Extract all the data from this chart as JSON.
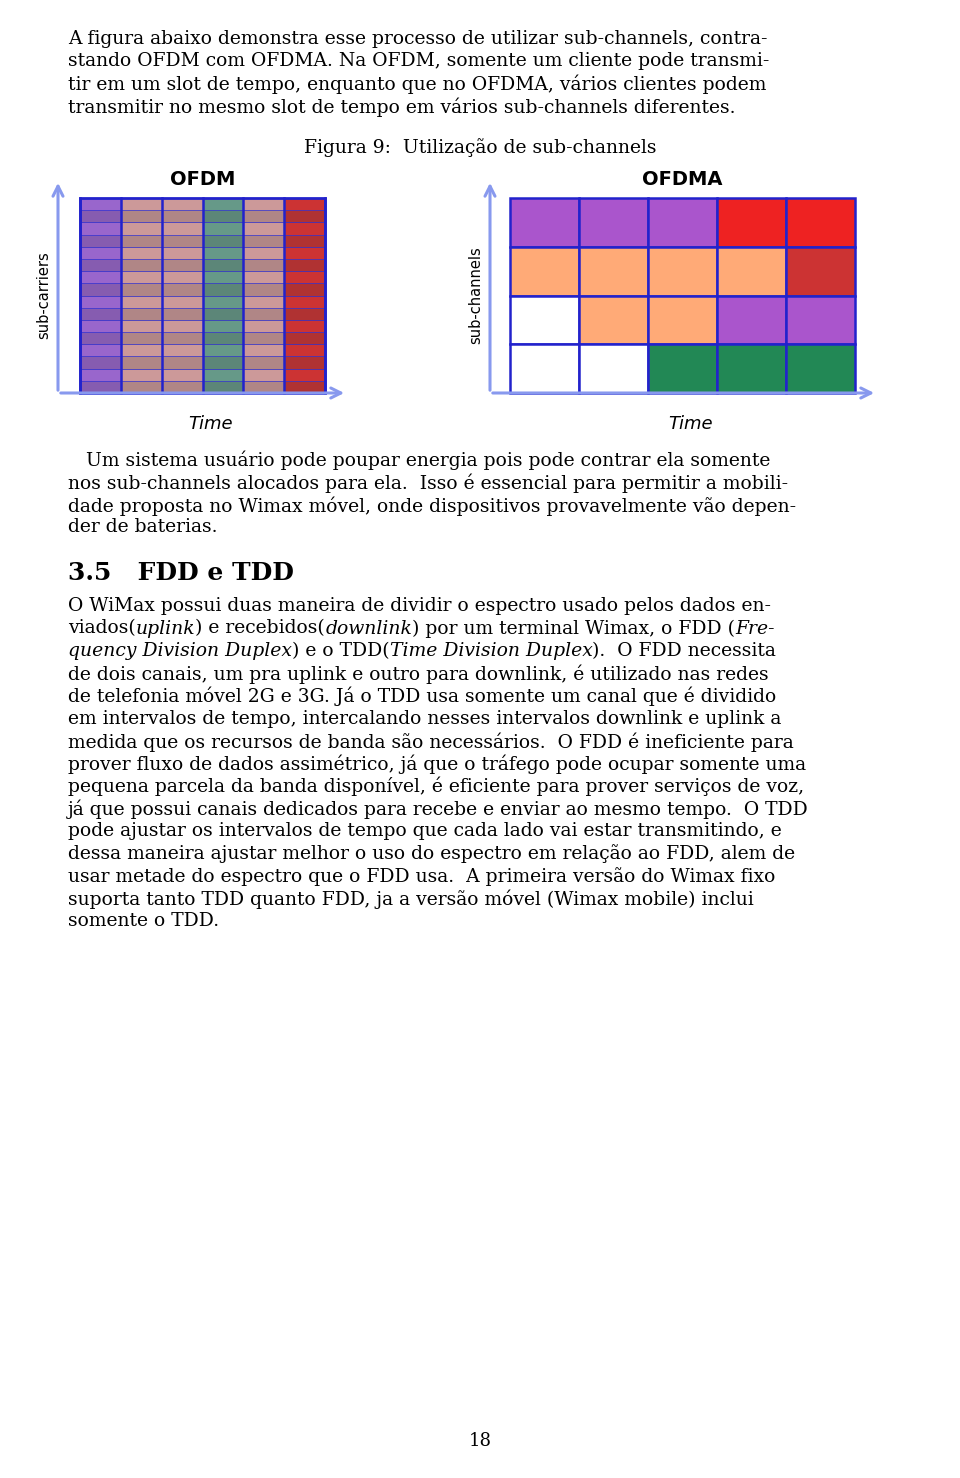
{
  "page_number": "18",
  "background_color": "#ffffff",
  "fig_caption": "Figura 9:  Utilização de sub-channels",
  "ofdm_title": "OFDM",
  "ofdma_title": "OFDMA",
  "ofdm_ylabel": "sub-carriers",
  "ofdma_ylabel": "sub-channels",
  "time_label": "Time",
  "border_color": "#2222CC",
  "arrow_color": "#8899EE",
  "ofdm_col_colors": [
    "#9966CC",
    "#CC9999",
    "#CC9999",
    "#669988",
    "#CC9999",
    "#CC3333"
  ],
  "ofdma_grid": [
    [
      "#AA55CC",
      "#AA55CC",
      "#AA55CC",
      "#EE2222",
      "#EE2222"
    ],
    [
      "#FFAA77",
      "#FFAA77",
      "#FFAA77",
      "#FFAA77",
      "#CC3333"
    ],
    [
      "#ffffff",
      "#FFAA77",
      "#FFAA77",
      "#AA55CC",
      "#AA55CC"
    ],
    [
      "#ffffff",
      "#ffffff",
      "#228855",
      "#228855",
      "#228855"
    ]
  ],
  "para1_lines": [
    "A figura abaixo demonstra esse processo de utilizar sub-channels, contra-",
    "stando OFDM com OFDMA. Na OFDM, somente um cliente pode transmi-",
    "tir em um slot de tempo, enquanto que no OFDMA, vários clientes podem",
    "transmitir no mesmo slot de tempo em vários sub-channels diferentes."
  ],
  "para2_lines": [
    "   Um sistema usuário pode poupar energia pois pode contrar ela somente",
    "nos sub-channels alocados para ela.  Isso é essencial para permitir a mobili-",
    "dade proposta no Wimax móvel, onde dispositivos provavelmente vão depen-",
    "der de baterias."
  ],
  "section_35": "3.5   FDD e TDD",
  "para3_lines": [
    [
      "O WiMax possui duas maneira de dividir o espectro usado pelos dados en-",
      "normal"
    ],
    [
      "viados(",
      "normal"
    ],
    [
      "uplink",
      "italic"
    ],
    [
      ") e recebidos(",
      "normal"
    ],
    [
      "downlink",
      "italic"
    ],
    [
      ") por um terminal Wimax, o FDD (",
      "normal"
    ],
    [
      "Fre-",
      "italic"
    ],
    [
      "quency Division Duplex",
      "italic"
    ],
    [
      ") e o TDD(",
      "normal"
    ],
    [
      "Time Division Duplex",
      "italic"
    ],
    [
      ").  O FDD necessita",
      "normal"
    ],
    [
      "de dois canais, um pra uplink e outro para downlink, é utilizado nas redes",
      "normal"
    ],
    [
      "de telefonia móvel 2G e 3G. Já o TDD usa somente um canal que é dividido",
      "normal"
    ],
    [
      "em intervalos de tempo, intercalando nesses intervalos downlink e uplink a",
      "normal"
    ],
    [
      "medida que os recursos de banda são necessários.  O FDD é ineficiente para",
      "normal"
    ],
    [
      "prover fluxo de dados assimétrico, já que o tráfego pode ocupar somente uma",
      "normal"
    ],
    [
      "pequena parcela da banda disponível, é eficiente para prover serviços de voz,",
      "normal"
    ],
    [
      "já que possui canais dedicados para recebe e enviar ao mesmo tempo.  O TDD",
      "normal"
    ],
    [
      "pode ajustar os intervalos de tempo que cada lado vai estar transmitindo, e",
      "normal"
    ],
    [
      "dessa maneira ajustar melhor o uso do espectro em relação ao FDD, alem de",
      "normal"
    ],
    [
      "usar metade do espectro que o FDD usa.  A primeira versão do Wimax fixo",
      "normal"
    ],
    [
      "suporta tanto TDD quanto FDD, ja a versão móvel (Wimax mobile) inclui",
      "normal"
    ],
    [
      "somente o TDD.",
      "normal"
    ]
  ]
}
